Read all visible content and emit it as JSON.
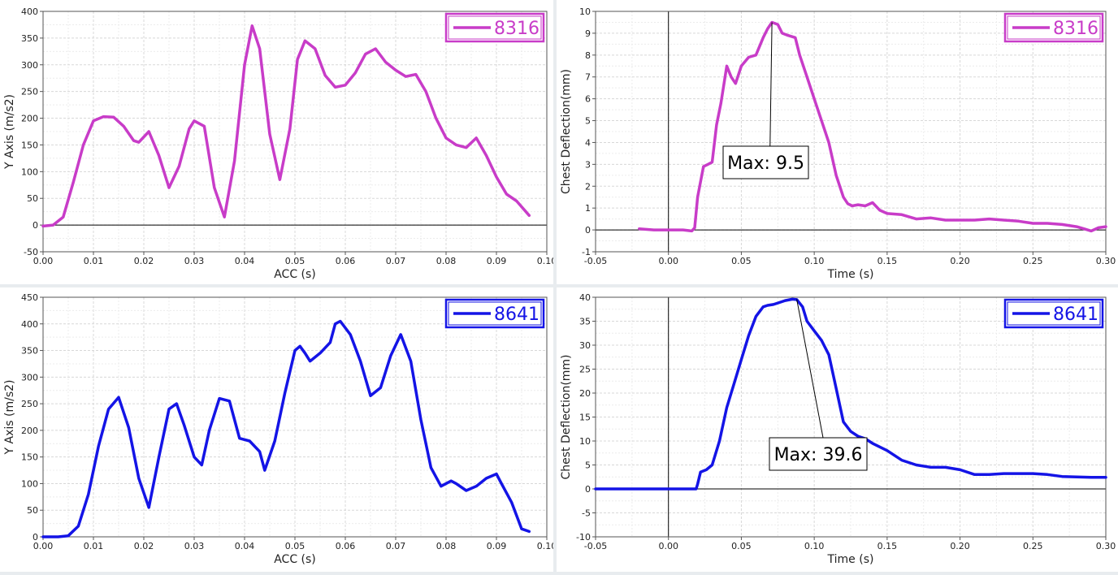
{
  "chart_data": [
    {
      "type": "line",
      "xlabel": "ACC (s)",
      "ylabel": "Y Axis (m/s2)",
      "xlim": [
        0,
        0.1
      ],
      "ylim": [
        -50,
        400
      ],
      "xticks": [
        "0.00",
        "0.01",
        "0.02",
        "0.03",
        "0.04",
        "0.05",
        "0.06",
        "0.07",
        "0.08",
        "0.09",
        "0.10"
      ],
      "yticks": [
        "-50",
        "0",
        "50",
        "100",
        "150",
        "200",
        "250",
        "300",
        "350",
        "400"
      ],
      "grid": true,
      "legend_position": "top-right",
      "color": "#c83cc8",
      "series": [
        {
          "name": "8316",
          "x": [
            0.0,
            0.002,
            0.004,
            0.006,
            0.008,
            0.01,
            0.012,
            0.014,
            0.016,
            0.018,
            0.019,
            0.021,
            0.023,
            0.025,
            0.027,
            0.029,
            0.03,
            0.032,
            0.034,
            0.036,
            0.038,
            0.04,
            0.0415,
            0.043,
            0.045,
            0.047,
            0.049,
            0.0505,
            0.052,
            0.054,
            0.056,
            0.058,
            0.06,
            0.062,
            0.064,
            0.066,
            0.068,
            0.07,
            0.072,
            0.074,
            0.076,
            0.078,
            0.08,
            0.082,
            0.084,
            0.086,
            0.088,
            0.09,
            0.092,
            0.094,
            0.0965
          ],
          "y": [
            -2,
            0,
            15,
            80,
            150,
            195,
            203,
            202,
            185,
            158,
            155,
            175,
            130,
            70,
            110,
            180,
            195,
            185,
            70,
            15,
            120,
            300,
            373,
            330,
            170,
            85,
            180,
            310,
            345,
            330,
            280,
            258,
            262,
            285,
            320,
            330,
            305,
            290,
            278,
            282,
            250,
            200,
            163,
            150,
            145,
            163,
            130,
            90,
            58,
            45,
            18
          ]
        }
      ]
    },
    {
      "type": "line",
      "xlabel": "Time (s)",
      "ylabel": "Chest Deflection(mm)",
      "xlim": [
        -0.05,
        0.3
      ],
      "ylim": [
        -1,
        10
      ],
      "xticks": [
        "-0.05",
        "0.00",
        "0.05",
        "0.10",
        "0.15",
        "0.20",
        "0.25",
        "0.30"
      ],
      "yticks": [
        "-1",
        "0",
        "1",
        "2",
        "3",
        "4",
        "5",
        "6",
        "7",
        "8",
        "9",
        "10"
      ],
      "grid": true,
      "legend_position": "top-right",
      "color": "#c83cc8",
      "annotation": {
        "text": "Max: 9.5",
        "x": 0.071,
        "y": 9.5
      },
      "series": [
        {
          "name": "8316",
          "x": [
            -0.02,
            -0.01,
            0.0,
            0.01,
            0.016,
            0.018,
            0.02,
            0.024,
            0.027,
            0.03,
            0.033,
            0.036,
            0.04,
            0.043,
            0.046,
            0.05,
            0.055,
            0.06,
            0.065,
            0.068,
            0.071,
            0.075,
            0.078,
            0.082,
            0.087,
            0.09,
            0.095,
            0.1,
            0.105,
            0.11,
            0.115,
            0.12,
            0.123,
            0.126,
            0.13,
            0.135,
            0.14,
            0.145,
            0.15,
            0.16,
            0.17,
            0.18,
            0.19,
            0.2,
            0.21,
            0.22,
            0.23,
            0.24,
            0.25,
            0.26,
            0.27,
            0.28,
            0.285,
            0.29,
            0.295,
            0.3
          ],
          "y": [
            0.05,
            0.0,
            0.0,
            0.0,
            -0.05,
            0.1,
            1.5,
            2.9,
            3.0,
            3.1,
            4.8,
            5.8,
            7.5,
            7.0,
            6.7,
            7.5,
            7.9,
            8.0,
            8.8,
            9.2,
            9.5,
            9.4,
            9.0,
            8.9,
            8.8,
            8.0,
            7.0,
            6.0,
            5.0,
            4.0,
            2.5,
            1.5,
            1.2,
            1.1,
            1.15,
            1.1,
            1.25,
            0.9,
            0.75,
            0.7,
            0.5,
            0.55,
            0.45,
            0.45,
            0.45,
            0.5,
            0.45,
            0.4,
            0.3,
            0.3,
            0.25,
            0.15,
            0.05,
            -0.05,
            0.1,
            0.15
          ]
        }
      ]
    },
    {
      "type": "line",
      "xlabel": "ACC (s)",
      "ylabel": "Y Axis (m/s2)",
      "xlim": [
        0,
        0.1
      ],
      "ylim": [
        0,
        450
      ],
      "xticks": [
        "0.00",
        "0.01",
        "0.02",
        "0.03",
        "0.04",
        "0.05",
        "0.06",
        "0.07",
        "0.08",
        "0.09",
        "0.10"
      ],
      "yticks": [
        "0",
        "50",
        "100",
        "150",
        "200",
        "250",
        "300",
        "350",
        "400",
        "450"
      ],
      "grid": true,
      "legend_position": "top-right",
      "color": "#1414e6",
      "series": [
        {
          "name": "8641",
          "x": [
            0.0,
            0.003,
            0.005,
            0.007,
            0.009,
            0.011,
            0.013,
            0.015,
            0.017,
            0.019,
            0.021,
            0.023,
            0.025,
            0.0265,
            0.028,
            0.03,
            0.0315,
            0.033,
            0.035,
            0.037,
            0.039,
            0.041,
            0.043,
            0.044,
            0.046,
            0.048,
            0.05,
            0.051,
            0.052,
            0.053,
            0.055,
            0.057,
            0.058,
            0.059,
            0.061,
            0.063,
            0.065,
            0.067,
            0.069,
            0.071,
            0.073,
            0.075,
            0.077,
            0.079,
            0.081,
            0.082,
            0.084,
            0.086,
            0.088,
            0.09,
            0.091,
            0.093,
            0.095,
            0.0965
          ],
          "y": [
            0,
            0,
            2,
            20,
            80,
            170,
            240,
            262,
            205,
            110,
            55,
            150,
            240,
            250,
            210,
            150,
            135,
            200,
            260,
            255,
            185,
            180,
            160,
            125,
            180,
            270,
            350,
            358,
            345,
            330,
            345,
            365,
            400,
            405,
            380,
            330,
            265,
            280,
            340,
            380,
            330,
            220,
            130,
            95,
            105,
            100,
            87,
            95,
            110,
            118,
            100,
            65,
            15,
            10
          ]
        }
      ]
    },
    {
      "type": "line",
      "xlabel": "Time (s)",
      "ylabel": "Chest Deflection(mm)",
      "xlim": [
        -0.05,
        0.3
      ],
      "ylim": [
        -10,
        40
      ],
      "xticks": [
        "-0.05",
        "0.00",
        "0.05",
        "0.10",
        "0.15",
        "0.20",
        "0.25",
        "0.30"
      ],
      "yticks": [
        "-10",
        "-5",
        "0",
        "5",
        "10",
        "15",
        "20",
        "25",
        "30",
        "35",
        "40"
      ],
      "grid": true,
      "legend_position": "top-right",
      "color": "#1414e6",
      "annotation": {
        "text": "Max: 39.6",
        "x": 0.088,
        "y": 39.6
      },
      "series": [
        {
          "name": "8641",
          "x": [
            -0.05,
            0.0,
            0.019,
            0.02,
            0.022,
            0.026,
            0.03,
            0.035,
            0.04,
            0.045,
            0.05,
            0.055,
            0.06,
            0.065,
            0.068,
            0.072,
            0.075,
            0.08,
            0.085,
            0.088,
            0.092,
            0.095,
            0.1,
            0.105,
            0.11,
            0.115,
            0.12,
            0.125,
            0.13,
            0.135,
            0.14,
            0.15,
            0.16,
            0.17,
            0.18,
            0.19,
            0.2,
            0.21,
            0.22,
            0.23,
            0.24,
            0.25,
            0.26,
            0.27,
            0.28,
            0.29,
            0.3
          ],
          "y": [
            0,
            0,
            0,
            1,
            3.5,
            4.0,
            5,
            10,
            17,
            22,
            27,
            32,
            36,
            38,
            38.3,
            38.5,
            38.8,
            39.3,
            39.6,
            39.5,
            38,
            35,
            33,
            31,
            28,
            21,
            14,
            12,
            11,
            10.5,
            9.5,
            8,
            6,
            5,
            4.5,
            4.5,
            4,
            3,
            3,
            3.2,
            3.2,
            3.2,
            3,
            2.6,
            2.5,
            2.4,
            2.4
          ]
        }
      ]
    }
  ]
}
